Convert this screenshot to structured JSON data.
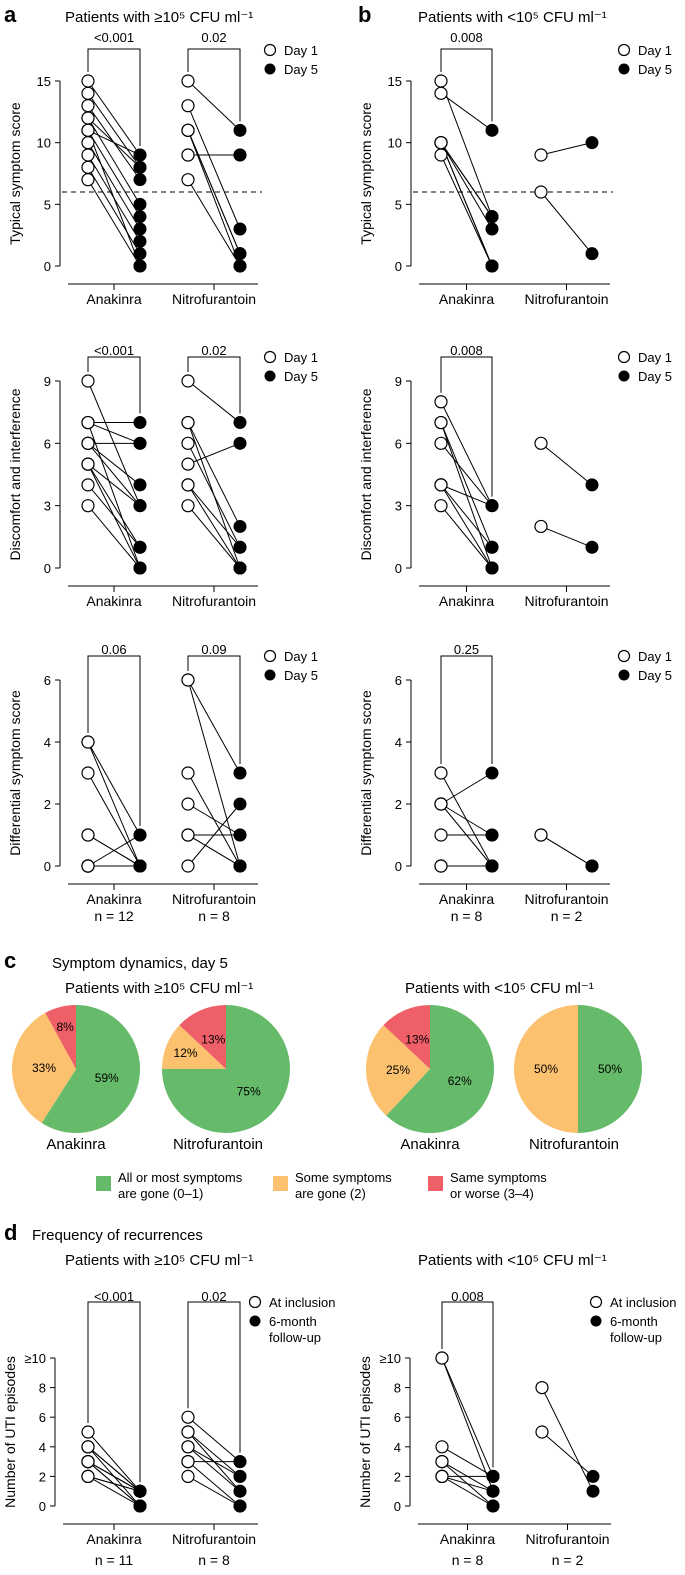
{
  "panel_letters": [
    "a",
    "b",
    "c",
    "d"
  ],
  "groups": {
    "high": "Patients with ≥10⁵ CFU ml⁻¹",
    "low": "Patients with <10⁵ CFU ml⁻¹"
  },
  "legend_days": [
    "Day 1",
    "Day 5"
  ],
  "legend_recur": [
    "At inclusion",
    "6-month",
    "follow-up"
  ],
  "panel_c_title": "Symptom dynamics, day 5",
  "panel_d_title": "Frequency of recurrences",
  "pie_legend": [
    {
      "lines": [
        "All or most symptoms",
        "are gone (0–1)"
      ],
      "color": "#66bb6a"
    },
    {
      "lines": [
        "Some symptoms",
        "are gone (2)"
      ],
      "color": "#fcc16f"
    },
    {
      "lines": [
        "Same symptoms",
        "or worse (3–4)"
      ],
      "color": "#ef5f68"
    }
  ],
  "chart_data": [
    {
      "id": "a1",
      "type": "scatter",
      "ylabel": "Typical symptom score",
      "ylim": [
        0,
        16
      ],
      "yticks": [
        0,
        5,
        10,
        15
      ],
      "threshold": 6,
      "groups": [
        {
          "label": "Anakinra",
          "p": "<0.001",
          "pairs": [
            [
              15,
              9
            ],
            [
              14,
              8
            ],
            [
              13,
              7
            ],
            [
              12,
              5
            ],
            [
              11,
              9
            ],
            [
              11,
              4
            ],
            [
              10,
              3
            ],
            [
              9,
              2
            ],
            [
              8,
              1
            ],
            [
              7,
              0
            ],
            [
              11,
              0
            ],
            [
              12,
              8
            ]
          ]
        },
        {
          "label": "Nitrofurantoin",
          "p": "0.02",
          "pairs": [
            [
              15,
              11
            ],
            [
              13,
              3
            ],
            [
              11,
              1
            ],
            [
              11,
              0
            ],
            [
              9,
              9
            ],
            [
              9,
              9
            ],
            [
              7,
              0
            ],
            [
              11,
              1
            ]
          ]
        }
      ]
    },
    {
      "id": "b1",
      "type": "scatter",
      "ylabel": "Typical symptom score",
      "ylim": [
        0,
        16
      ],
      "yticks": [
        0,
        5,
        10,
        15
      ],
      "threshold": 6,
      "groups": [
        {
          "label": "Anakinra",
          "p": "0.008",
          "pairs": [
            [
              15,
              4
            ],
            [
              14,
              11
            ],
            [
              10,
              4
            ],
            [
              10,
              3
            ],
            [
              10,
              0
            ],
            [
              9,
              0
            ],
            [
              10,
              4
            ],
            [
              10,
              0
            ]
          ]
        },
        {
          "label": "Nitrofurantoin",
          "p": "",
          "pairs": [
            [
              9,
              10
            ],
            [
              6,
              1
            ]
          ]
        }
      ]
    },
    {
      "id": "a2",
      "type": "scatter",
      "ylabel": "Discomfort and interference",
      "ylim": [
        0,
        9.6
      ],
      "yticks": [
        0,
        3,
        6,
        9
      ],
      "groups": [
        {
          "label": "Anakinra",
          "p": "<0.001",
          "pairs": [
            [
              9,
              3
            ],
            [
              7,
              7
            ],
            [
              7,
              0
            ],
            [
              6,
              6
            ],
            [
              6,
              4
            ],
            [
              5,
              1
            ],
            [
              5,
              3
            ],
            [
              4,
              1
            ],
            [
              3,
              0
            ],
            [
              6,
              3
            ],
            [
              5,
              0
            ],
            [
              7,
              6
            ]
          ]
        },
        {
          "label": "Nitrofurantoin",
          "p": "0.02",
          "pairs": [
            [
              9,
              7
            ],
            [
              7,
              2
            ],
            [
              7,
              0
            ],
            [
              6,
              1
            ],
            [
              5,
              6
            ],
            [
              4,
              0
            ],
            [
              3,
              0
            ],
            [
              4,
              1
            ]
          ]
        }
      ]
    },
    {
      "id": "b2",
      "type": "scatter",
      "ylabel": "Discomfort and interference",
      "ylim": [
        0,
        9.6
      ],
      "yticks": [
        0,
        3,
        6,
        9
      ],
      "groups": [
        {
          "label": "Anakinra",
          "p": "0.008",
          "pairs": [
            [
              8,
              3
            ],
            [
              7,
              1
            ],
            [
              7,
              0
            ],
            [
              6,
              3
            ],
            [
              4,
              3
            ],
            [
              4,
              1
            ],
            [
              3,
              0
            ],
            [
              4,
              0
            ]
          ]
        },
        {
          "label": "Nitrofurantoin",
          "p": "",
          "pairs": [
            [
              6,
              4
            ],
            [
              2,
              1
            ]
          ]
        }
      ]
    },
    {
      "id": "a3",
      "type": "scatter",
      "ylabel": "Differential symptom score",
      "ylim": [
        0,
        6.4
      ],
      "yticks": [
        0,
        2,
        4,
        6
      ],
      "groups": [
        {
          "label": "Anakinra",
          "n": "n = 12",
          "p": "0.06",
          "pairs": [
            [
              4,
              1
            ],
            [
              4,
              0
            ],
            [
              3,
              0
            ],
            [
              1,
              0
            ],
            [
              0,
              0
            ],
            [
              0,
              0
            ],
            [
              0,
              0
            ],
            [
              0,
              0
            ],
            [
              0,
              0
            ],
            [
              0,
              0
            ],
            [
              1,
              0
            ],
            [
              0,
              1
            ]
          ]
        },
        {
          "label": "Nitrofurantoin",
          "n": "n = 8",
          "p": "0.09",
          "pairs": [
            [
              6,
              3
            ],
            [
              6,
              0
            ],
            [
              3,
              0
            ],
            [
              2,
              1
            ],
            [
              1,
              1
            ],
            [
              1,
              0
            ],
            [
              0,
              2
            ],
            [
              1,
              0
            ]
          ]
        }
      ]
    },
    {
      "id": "b3",
      "type": "scatter",
      "ylabel": "Differential symptom score",
      "ylim": [
        0,
        6.4
      ],
      "yticks": [
        0,
        2,
        4,
        6
      ],
      "groups": [
        {
          "label": "Anakinra",
          "n": "n = 8",
          "p": "0.25",
          "pairs": [
            [
              3,
              0
            ],
            [
              2,
              3
            ],
            [
              2,
              0
            ],
            [
              1,
              1
            ],
            [
              0,
              0
            ],
            [
              0,
              0
            ],
            [
              2,
              1
            ],
            [
              0,
              0
            ]
          ]
        },
        {
          "label": "Nitrofurantoin",
          "n": "n = 2",
          "p": "",
          "pairs": [
            [
              1,
              0
            ],
            [
              1,
              0
            ]
          ]
        }
      ]
    },
    {
      "id": "c1",
      "type": "pie",
      "label": "Anakinra",
      "slices": [
        {
          "value": 59,
          "label": "59%"
        },
        {
          "value": 33,
          "label": "33%"
        },
        {
          "value": 8,
          "label": "8%"
        }
      ]
    },
    {
      "id": "c2",
      "type": "pie",
      "label": "Nitrofurantoin",
      "slices": [
        {
          "value": 75,
          "label": "75%"
        },
        {
          "value": 12,
          "label": "12%"
        },
        {
          "value": 13,
          "label": "13%"
        }
      ]
    },
    {
      "id": "c3",
      "type": "pie",
      "label": "Anakinra",
      "slices": [
        {
          "value": 62,
          "label": "62%"
        },
        {
          "value": 25,
          "label": "25%"
        },
        {
          "value": 13,
          "label": "13%"
        }
      ]
    },
    {
      "id": "c4",
      "type": "pie",
      "label": "Nitrofurantoin",
      "slices": [
        {
          "value": 50,
          "label": "50%"
        },
        {
          "value": 50,
          "label": "50%"
        },
        {
          "value": 0,
          "label": ""
        }
      ]
    },
    {
      "id": "d1",
      "type": "scatter",
      "ylabel": "Number of UTI episodes",
      "ylim": [
        0,
        10.6
      ],
      "yticks": [
        0,
        2,
        4,
        6,
        8,
        10
      ],
      "ytick_labels": [
        "0",
        "2",
        "4",
        "6",
        "8",
        "≥10"
      ],
      "groups": [
        {
          "label": "Anakinra",
          "n": "n = 11",
          "p": "<0.001",
          "pairs": [
            [
              5,
              1
            ],
            [
              4,
              1
            ],
            [
              4,
              0
            ],
            [
              3,
              1
            ],
            [
              3,
              0
            ],
            [
              3,
              1
            ],
            [
              2,
              1
            ],
            [
              2,
              0
            ],
            [
              2,
              1
            ],
            [
              3,
              0
            ],
            [
              4,
              1
            ]
          ]
        },
        {
          "label": "Nitrofurantoin",
          "n": "n = 8",
          "p": "0.02",
          "pairs": [
            [
              6,
              3
            ],
            [
              5,
              2
            ],
            [
              5,
              1
            ],
            [
              4,
              1
            ],
            [
              3,
              3
            ],
            [
              3,
              0
            ],
            [
              2,
              0
            ],
            [
              4,
              2
            ]
          ]
        }
      ]
    },
    {
      "id": "d2",
      "type": "scatter",
      "ylabel": "Number of UTI episodes",
      "ylim": [
        0,
        10.6
      ],
      "yticks": [
        0,
        2,
        4,
        6,
        8,
        10
      ],
      "ytick_labels": [
        "0",
        "2",
        "4",
        "6",
        "8",
        "≥10"
      ],
      "groups": [
        {
          "label": "Anakinra",
          "n": "n = 8",
          "p": "0.008",
          "pairs": [
            [
              10,
              2
            ],
            [
              10,
              1
            ],
            [
              4,
              2
            ],
            [
              3,
              0
            ],
            [
              3,
              1
            ],
            [
              2,
              2
            ],
            [
              2,
              0
            ],
            [
              2,
              1
            ]
          ]
        },
        {
          "label": "Nitrofurantoin",
          "n": "n = 2",
          "p": "",
          "pairs": [
            [
              8,
              1
            ],
            [
              5,
              2
            ]
          ]
        }
      ]
    }
  ]
}
